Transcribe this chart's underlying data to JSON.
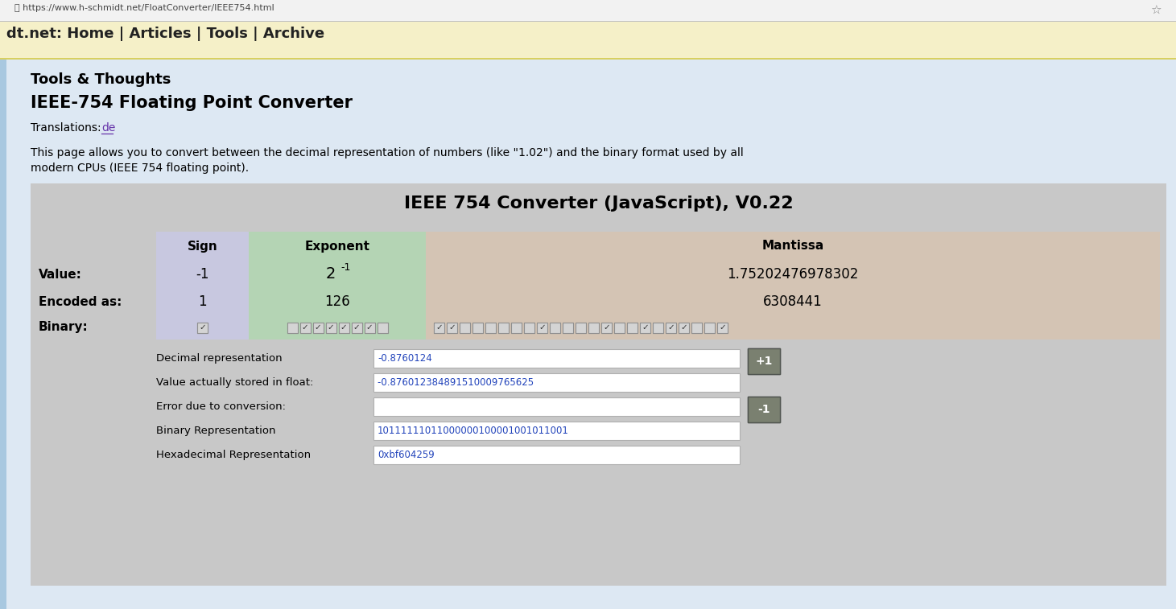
{
  "fig_width": 14.61,
  "fig_height": 7.57,
  "browser_bar_color": "#f2f2f2",
  "nav_bar_color": "#f5f0c8",
  "light_blue_bg": "#dde8f3",
  "gray_box_bg": "#c8c8c8",
  "sign_bg": "#c8c8e0",
  "exponent_bg": "#b4d4b4",
  "mantissa_bg": "#d4c4b4",
  "url_text": "https://www.h-schmidt.net/FloatConverter/IEEE754.html",
  "nav_text": "dt.net: Home | Articles | Tools | Archive",
  "site_title": "Tools & Thoughts",
  "page_title": "IEEE-754 Floating Point Converter",
  "translations_pre": "Translations: ",
  "translation_link": "de",
  "description_line1": "This page allows you to convert between the decimal representation of numbers (like \"1.02\") and the binary format used by all",
  "description_line2": "modern CPUs (IEEE 754 floating point).",
  "converter_title": "IEEE 754 Converter (JavaScript), V0.22",
  "sign_label": "Sign",
  "exponent_label": "Exponent",
  "mantissa_label": "Mantissa",
  "value_label": "Value:",
  "encoded_label": "Encoded as:",
  "binary_label": "Binary:",
  "sign_value": "-1",
  "sign_encoded": "1",
  "exponent_value_base": "2",
  "exponent_value_exp": "-1",
  "exponent_encoded": "126",
  "mantissa_value": "1.75202476978302",
  "mantissa_encoded": "6308441",
  "decimal_repr_label": "Decimal representation",
  "decimal_repr_value": "-0.8760124",
  "stored_label": "Value actually stored in float:",
  "stored_value": "-0.87601238489151000976​5625",
  "error_label": "Error due to conversion:",
  "error_value": "",
  "binary_rep_label": "Binary Representation",
  "binary_rep_value": "10111111011000000100001001011001",
  "hex_label": "Hexadecimal Representation",
  "hex_value": "0xbf604259",
  "plus_btn_color": "#7a8070",
  "minus_btn_color": "#7a8070",
  "input_bg": "#ffffff",
  "text_color": "#000000",
  "link_color": "#6633aa",
  "sign_bits": [
    1
  ],
  "exponent_bits": [
    0,
    1,
    1,
    1,
    1,
    1,
    1,
    0
  ],
  "mantissa_bits": [
    1,
    1,
    0,
    0,
    0,
    0,
    0,
    0,
    1,
    0,
    0,
    0,
    0,
    1,
    0,
    0,
    1,
    0,
    1,
    1,
    0,
    0,
    1
  ]
}
